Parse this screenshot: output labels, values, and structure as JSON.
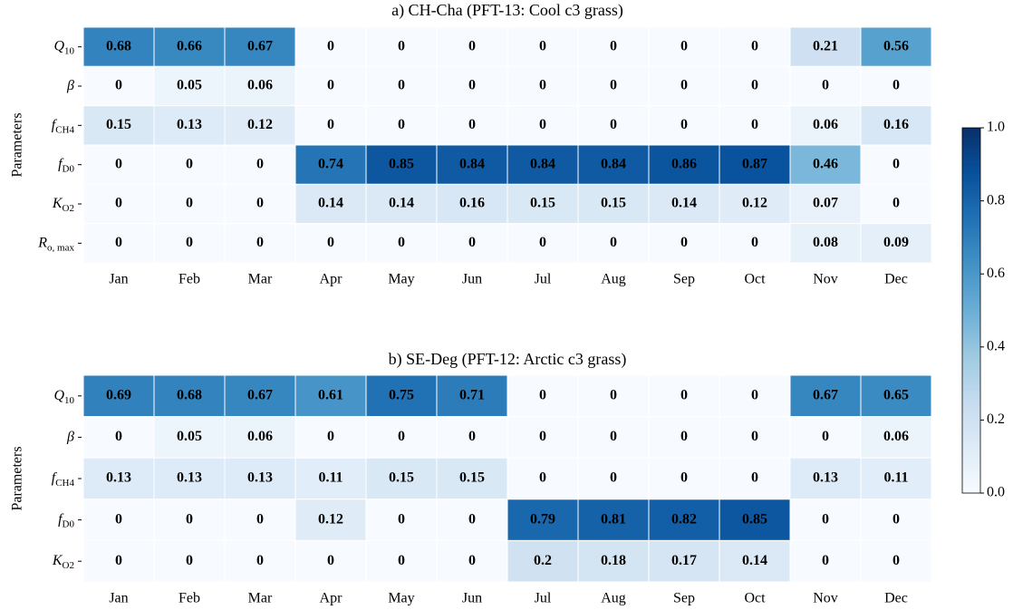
{
  "chart_data": [
    {
      "type": "heatmap",
      "title": "a) CH-Cha (PFT-13: Cool c3 grass)",
      "ylabel": "Parameters",
      "categories": [
        "Jan",
        "Feb",
        "Mar",
        "Apr",
        "May",
        "Jun",
        "Jul",
        "Aug",
        "Sep",
        "Oct",
        "Nov",
        "Dec"
      ],
      "rows": [
        {
          "base": "Q",
          "sub": "10"
        },
        {
          "base": "β",
          "sub": null
        },
        {
          "base": "f",
          "sub": "CH4"
        },
        {
          "base": "f",
          "sub": "D0"
        },
        {
          "base": "K",
          "sub": "O2"
        },
        {
          "base": "R",
          "sub": "o, max"
        }
      ],
      "values": [
        [
          0.68,
          0.66,
          0.67,
          0,
          0,
          0,
          0,
          0,
          0,
          0,
          0.21,
          0.56
        ],
        [
          0,
          0.05,
          0.06,
          0,
          0,
          0,
          0,
          0,
          0,
          0,
          0,
          0
        ],
        [
          0.15,
          0.13,
          0.12,
          0,
          0,
          0,
          0,
          0,
          0,
          0,
          0.06,
          0.16
        ],
        [
          0,
          0,
          0,
          0.74,
          0.85,
          0.84,
          0.84,
          0.84,
          0.86,
          0.87,
          0.46,
          0
        ],
        [
          0,
          0,
          0,
          0.14,
          0.14,
          0.16,
          0.15,
          0.15,
          0.14,
          0.12,
          0.07,
          0
        ],
        [
          0,
          0,
          0,
          0,
          0,
          0,
          0,
          0,
          0,
          0,
          0.08,
          0.09
        ]
      ]
    },
    {
      "type": "heatmap",
      "title": "b) SE-Deg (PFT-12: Arctic c3 grass)",
      "ylabel": "Parameters",
      "categories": [
        "Jan",
        "Feb",
        "Mar",
        "Apr",
        "May",
        "Jun",
        "Jul",
        "Aug",
        "Sep",
        "Oct",
        "Nov",
        "Dec"
      ],
      "rows": [
        {
          "base": "Q",
          "sub": "10"
        },
        {
          "base": "β",
          "sub": null
        },
        {
          "base": "f",
          "sub": "CH4"
        },
        {
          "base": "f",
          "sub": "D0"
        },
        {
          "base": "K",
          "sub": "O2"
        }
      ],
      "values": [
        [
          0.69,
          0.68,
          0.67,
          0.61,
          0.75,
          0.71,
          0,
          0,
          0,
          0,
          0.67,
          0.65
        ],
        [
          0,
          0.05,
          0.06,
          0,
          0,
          0,
          0,
          0,
          0,
          0,
          0,
          0.06
        ],
        [
          0.13,
          0.13,
          0.13,
          0.11,
          0.15,
          0.15,
          0,
          0,
          0,
          0,
          0.13,
          0.11
        ],
        [
          0,
          0,
          0,
          0.12,
          0,
          0,
          0.79,
          0.81,
          0.82,
          0.85,
          0,
          0
        ],
        [
          0,
          0,
          0,
          0,
          0,
          0,
          0.2,
          0.18,
          0.17,
          0.14,
          0,
          0
        ]
      ]
    }
  ],
  "colorbar": {
    "lim": [
      0,
      1
    ],
    "ticks": [
      {
        "value": 0,
        "label": "0.0"
      },
      0.2,
      0.4,
      0.6,
      0.8,
      {
        "value": 1,
        "label": "1.0"
      }
    ],
    "colormap": [
      "#f7fbff",
      "#deebf7",
      "#c6dbef",
      "#9ecae1",
      "#6baed6",
      "#4292c6",
      "#2171b5",
      "#08519c",
      "#08306b"
    ]
  }
}
